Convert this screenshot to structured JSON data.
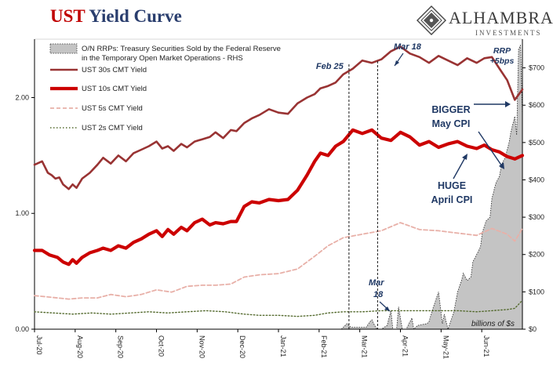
{
  "header": {
    "title_part1": "UST",
    "title_part2": "Yield Curve",
    "brand_name": "ALHAMBRA",
    "brand_sub": "INVESTMENTS"
  },
  "colors": {
    "ust30": "#993333",
    "ust10": "#cc0000",
    "ust5": "#e8b0a8",
    "ust2": "#556b2f",
    "rrp_fill": "#c4c4c4",
    "annotation": "#1f3864",
    "title_red": "#c00000",
    "title_blue": "#2a3e6e"
  },
  "chart_data": {
    "type": "line",
    "x_axis": {
      "range": [
        "Jul-20",
        "Jun-21"
      ],
      "tick_labels": [
        "Jul-20",
        "Aug-20",
        "Sep-20",
        "Oct-20",
        "Nov-20",
        "Dec-20",
        "Jan-21",
        "Feb-21",
        "Mar-21",
        "Apr-21",
        "May-21",
        "Jun-21"
      ]
    },
    "y_left": {
      "ylim": [
        0,
        2.45
      ],
      "ticks": [
        0.0,
        1.0,
        2.0
      ],
      "tick_labels": [
        "0.00",
        "1.00",
        "2.00"
      ]
    },
    "y_right": {
      "ylim": [
        0,
        760
      ],
      "ticks": [
        0,
        100,
        200,
        300,
        400,
        500,
        600,
        700
      ],
      "tick_labels": [
        "$0",
        "$100",
        "$200",
        "$300",
        "$400",
        "$500",
        "$600",
        "$700"
      ]
    },
    "legend": {
      "position": "top-left",
      "entries": [
        "O/N RRPs: Treasury Securities Sold by the Federal Reserve in the Temporary Open Market Operations - RHS",
        "UST 30s CMT Yield",
        "UST 10s CMT Yield",
        "UST 5s CMT Yield",
        "UST 2s CMT Yield"
      ]
    },
    "series": [
      {
        "name": "UST 30s CMT Yield",
        "axis": "left",
        "x": [
          0,
          4,
          7,
          9,
          11,
          13,
          15,
          18,
          20,
          22,
          25,
          29,
          33,
          36,
          40,
          44,
          48,
          52,
          56,
          60,
          64,
          67,
          70,
          73,
          77,
          80,
          84,
          88,
          92,
          95,
          99,
          103,
          106,
          110,
          114,
          118,
          123,
          128,
          133,
          138,
          143,
          147,
          150,
          154,
          158,
          162,
          167,
          172,
          177,
          182,
          187,
          192,
          197,
          202,
          207,
          212,
          217,
          222,
          227,
          232,
          236,
          240,
          244,
          248,
          252,
          256
        ],
        "y": [
          1.42,
          1.45,
          1.35,
          1.33,
          1.3,
          1.31,
          1.25,
          1.21,
          1.25,
          1.22,
          1.3,
          1.35,
          1.42,
          1.48,
          1.43,
          1.5,
          1.45,
          1.52,
          1.55,
          1.58,
          1.62,
          1.56,
          1.58,
          1.54,
          1.6,
          1.57,
          1.62,
          1.64,
          1.66,
          1.7,
          1.65,
          1.72,
          1.71,
          1.78,
          1.82,
          1.85,
          1.9,
          1.87,
          1.86,
          1.95,
          2.0,
          2.03,
          2.08,
          2.1,
          2.13,
          2.2,
          2.25,
          2.32,
          2.3,
          2.33,
          2.4,
          2.44,
          2.38,
          2.35,
          2.3,
          2.36,
          2.32,
          2.28,
          2.34,
          2.3,
          2.34,
          2.35,
          2.25,
          2.15,
          1.98,
          2.07
        ]
      },
      {
        "name": "UST 10s CMT Yield",
        "axis": "left",
        "x": [
          0,
          4,
          8,
          12,
          15,
          18,
          20,
          22,
          25,
          29,
          33,
          36,
          40,
          44,
          48,
          52,
          56,
          60,
          64,
          67,
          70,
          73,
          77,
          80,
          84,
          88,
          92,
          95,
          99,
          103,
          106,
          110,
          114,
          118,
          123,
          128,
          133,
          138,
          143,
          147,
          150,
          154,
          158,
          162,
          167,
          172,
          177,
          182,
          187,
          192,
          197,
          202,
          207,
          212,
          217,
          222,
          227,
          232,
          236,
          240,
          244,
          248,
          252,
          256
        ],
        "y": [
          0.68,
          0.68,
          0.64,
          0.62,
          0.58,
          0.56,
          0.6,
          0.57,
          0.62,
          0.66,
          0.68,
          0.7,
          0.68,
          0.72,
          0.7,
          0.75,
          0.78,
          0.82,
          0.85,
          0.8,
          0.86,
          0.82,
          0.88,
          0.85,
          0.92,
          0.95,
          0.9,
          0.92,
          0.91,
          0.93,
          0.93,
          1.06,
          1.1,
          1.09,
          1.12,
          1.11,
          1.12,
          1.2,
          1.33,
          1.45,
          1.52,
          1.5,
          1.58,
          1.62,
          1.72,
          1.69,
          1.72,
          1.65,
          1.63,
          1.7,
          1.66,
          1.59,
          1.62,
          1.57,
          1.6,
          1.62,
          1.58,
          1.56,
          1.59,
          1.55,
          1.53,
          1.49,
          1.47,
          1.5
        ]
      },
      {
        "name": "UST 5s CMT Yield",
        "axis": "left",
        "x": [
          0,
          6,
          12,
          18,
          25,
          33,
          40,
          48,
          56,
          64,
          72,
          80,
          88,
          95,
          103,
          110,
          118,
          128,
          138,
          147,
          154,
          162,
          172,
          182,
          192,
          202,
          212,
          222,
          232,
          240,
          248,
          252,
          256
        ],
        "y": [
          0.29,
          0.28,
          0.27,
          0.26,
          0.27,
          0.27,
          0.3,
          0.28,
          0.3,
          0.34,
          0.32,
          0.37,
          0.38,
          0.38,
          0.39,
          0.45,
          0.47,
          0.48,
          0.52,
          0.63,
          0.72,
          0.79,
          0.82,
          0.85,
          0.92,
          0.86,
          0.85,
          0.83,
          0.81,
          0.87,
          0.82,
          0.76,
          0.87
        ]
      },
      {
        "name": "UST 2s CMT Yield",
        "axis": "left",
        "x": [
          0,
          10,
          20,
          30,
          40,
          50,
          60,
          70,
          80,
          90,
          100,
          110,
          118,
          128,
          138,
          147,
          154,
          162,
          172,
          182,
          192,
          202,
          212,
          222,
          232,
          240,
          248,
          252,
          256
        ],
        "y": [
          0.15,
          0.14,
          0.13,
          0.14,
          0.13,
          0.14,
          0.15,
          0.14,
          0.15,
          0.16,
          0.15,
          0.13,
          0.12,
          0.12,
          0.11,
          0.12,
          0.14,
          0.15,
          0.15,
          0.16,
          0.16,
          0.16,
          0.16,
          0.16,
          0.15,
          0.16,
          0.17,
          0.18,
          0.25
        ]
      },
      {
        "name": "O/N RRPs: Treasury Securities Sold by the Federal Reserve in the Temporary Open Market Operations - RHS",
        "axis": "right",
        "style": "area",
        "x": [
          161,
          163,
          164,
          166,
          174,
          176,
          177,
          179,
          180,
          182,
          185,
          187,
          188,
          190,
          191,
          193,
          195,
          198,
          199,
          201,
          206,
          207,
          209,
          212,
          214,
          215,
          217,
          220,
          222,
          224,
          225,
          227,
          229,
          230,
          232,
          234,
          235,
          237,
          239,
          240,
          242,
          244,
          245,
          247,
          249,
          250,
          252,
          253,
          254,
          255,
          256
        ],
        "y": [
          0,
          10,
          15,
          5,
          5,
          20,
          25,
          5,
          0,
          0,
          10,
          50,
          0,
          0,
          60,
          0,
          0,
          30,
          0,
          10,
          15,
          20,
          55,
          100,
          15,
          40,
          0,
          45,
          100,
          130,
          150,
          130,
          140,
          180,
          200,
          220,
          260,
          290,
          300,
          350,
          390,
          410,
          440,
          460,
          500,
          530,
          570,
          520,
          750,
          760,
          570
        ]
      }
    ],
    "annotations": [
      {
        "text": "Feb 25",
        "type": "vertical-dashed-line",
        "x_index": 165
      },
      {
        "text": "Mar 18",
        "type": "vertical-dashed-line",
        "x_index": 180
      },
      {
        "text": "Mar",
        "type": "label"
      },
      {
        "text": "18",
        "type": "label"
      },
      {
        "text": "RRP",
        "type": "label"
      },
      {
        "text": "+5bps",
        "type": "label"
      },
      {
        "text": "BIGGER",
        "type": "callout"
      },
      {
        "text": "May CPI",
        "type": "callout"
      },
      {
        "text": "HUGE",
        "type": "callout"
      },
      {
        "text": "April CPI",
        "type": "callout"
      },
      {
        "text": "billions of $s",
        "type": "unit-note"
      }
    ]
  }
}
